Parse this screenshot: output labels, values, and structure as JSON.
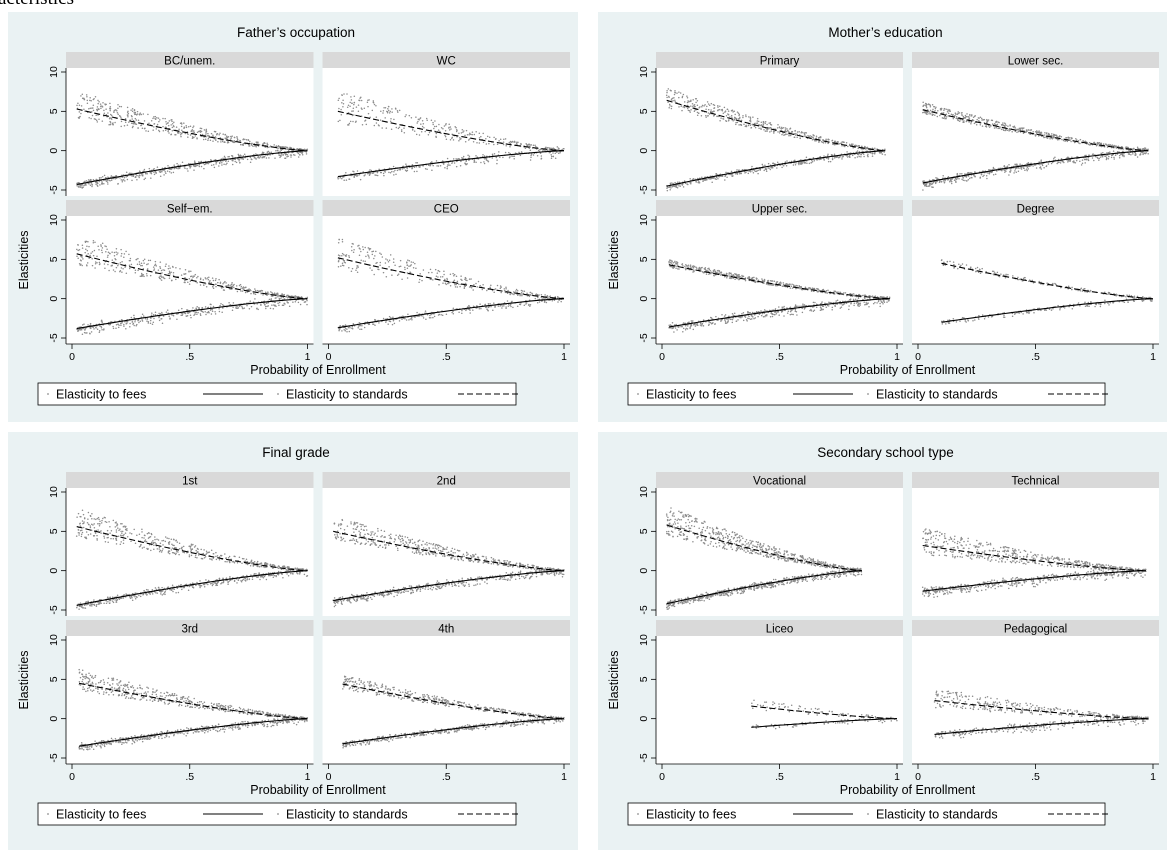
{
  "header_fragment": "acteristics",
  "colors": {
    "panel_bg": "#eaf2f3",
    "plot_bg": "#ffffff",
    "strip_bg": "#d9d9d9",
    "scatter": "#8c8c8c",
    "line": "#000000"
  },
  "chart_data": [
    {
      "type": "scatter",
      "title": "Father’s occupation",
      "xlabel": "Probability of Enrollment",
      "ylabel": "Elasticities",
      "xlim": [
        0,
        1
      ],
      "ylim": [
        -5,
        10
      ],
      "xticks": [
        "0",
        ".5",
        "1"
      ],
      "yticks": [
        "-5",
        "0",
        "5",
        "10"
      ],
      "legend": {
        "placement": "bottom",
        "entries": [
          {
            "label": "Elasticity to fees",
            "style": "solid"
          },
          {
            "label": "Elasticity to standards",
            "style": "dashed"
          }
        ]
      },
      "facets": [
        {
          "label": "BC/unem.",
          "xmin": 0.02,
          "xmax": 1.0,
          "fees_start": -4.3,
          "std_start": 5.3,
          "max_pos": 7.2,
          "max_neg": -5.0,
          "n": 520
        },
        {
          "label": "WC",
          "xmin": 0.04,
          "xmax": 1.0,
          "fees_start": -3.3,
          "std_start": 5.0,
          "max_pos": 7.3,
          "max_neg": -4.0,
          "n": 320
        },
        {
          "label": "Self−em.",
          "xmin": 0.02,
          "xmax": 1.0,
          "fees_start": -3.8,
          "std_start": 5.7,
          "max_pos": 7.7,
          "max_neg": -4.7,
          "n": 420
        },
        {
          "label": "CEO",
          "xmin": 0.04,
          "xmax": 1.0,
          "fees_start": -3.7,
          "std_start": 5.2,
          "max_pos": 7.3,
          "max_neg": -4.2,
          "n": 300
        }
      ]
    },
    {
      "type": "scatter",
      "title": "Mother’s education",
      "xlabel": "Probability of Enrollment",
      "ylabel": "Elasticities",
      "xlim": [
        0,
        1
      ],
      "ylim": [
        -5,
        10
      ],
      "xticks": [
        "0",
        ".5",
        "1"
      ],
      "yticks": [
        "-5",
        "0",
        "5",
        "10"
      ],
      "legend": {
        "placement": "bottom",
        "entries": [
          {
            "label": "Elasticity to fees",
            "style": "solid"
          },
          {
            "label": "Elasticity to standards",
            "style": "dashed"
          }
        ]
      },
      "facets": [
        {
          "label": "Primary",
          "xmin": 0.02,
          "xmax": 0.95,
          "fees_start": -4.5,
          "std_start": 6.4,
          "max_pos": 7.7,
          "max_neg": -5.0,
          "n": 480
        },
        {
          "label": "Lower sec.",
          "xmin": 0.02,
          "xmax": 0.98,
          "fees_start": -4.1,
          "std_start": 5.2,
          "max_pos": 5.9,
          "max_neg": -4.8,
          "n": 520
        },
        {
          "label": "Upper sec.",
          "xmin": 0.03,
          "xmax": 0.97,
          "fees_start": -3.6,
          "std_start": 4.3,
          "max_pos": 4.7,
          "max_neg": -4.3,
          "n": 500
        },
        {
          "label": "Degree",
          "xmin": 0.1,
          "xmax": 1.0,
          "fees_start": -3.0,
          "std_start": 4.5,
          "max_pos": 4.8,
          "max_neg": -3.3,
          "n": 180
        }
      ]
    },
    {
      "type": "scatter",
      "title": "Final grade",
      "xlabel": "Probability of Enrollment",
      "ylabel": "Elasticities",
      "xlim": [
        0,
        1
      ],
      "ylim": [
        -5,
        10
      ],
      "xticks": [
        "0",
        ".5",
        "1"
      ],
      "yticks": [
        "-5",
        "0",
        "5",
        "10"
      ],
      "legend": {
        "placement": "bottom",
        "entries": [
          {
            "label": "Elasticity to fees",
            "style": "solid"
          },
          {
            "label": "Elasticity to standards",
            "style": "dashed"
          }
        ]
      },
      "facets": [
        {
          "label": "1st",
          "xmin": 0.02,
          "xmax": 1.0,
          "fees_start": -4.4,
          "std_start": 5.6,
          "max_pos": 7.5,
          "max_neg": -4.9,
          "n": 480
        },
        {
          "label": "2nd",
          "xmin": 0.02,
          "xmax": 1.0,
          "fees_start": -3.8,
          "std_start": 5.0,
          "max_pos": 6.6,
          "max_neg": -4.4,
          "n": 500
        },
        {
          "label": "3rd",
          "xmin": 0.03,
          "xmax": 1.0,
          "fees_start": -3.5,
          "std_start": 4.5,
          "max_pos": 5.9,
          "max_neg": -4.0,
          "n": 520
        },
        {
          "label": "4th",
          "xmin": 0.06,
          "xmax": 1.0,
          "fees_start": -3.2,
          "std_start": 4.4,
          "max_pos": 5.3,
          "max_neg": -3.6,
          "n": 420
        }
      ]
    },
    {
      "type": "scatter",
      "title": "Secondary school type",
      "xlabel": "Probability of Enrollment",
      "ylabel": "Elasticities",
      "xlim": [
        0,
        1
      ],
      "ylim": [
        -5,
        10
      ],
      "xticks": [
        "0",
        ".5",
        "1"
      ],
      "yticks": [
        "-5",
        "0",
        "5",
        "10"
      ],
      "legend": {
        "placement": "bottom",
        "entries": [
          {
            "label": "Elasticity to fees",
            "style": "solid"
          },
          {
            "label": "Elasticity to standards",
            "style": "dashed"
          }
        ]
      },
      "facets": [
        {
          "label": "Vocational",
          "xmin": 0.02,
          "xmax": 0.85,
          "fees_start": -4.2,
          "std_start": 5.8,
          "max_pos": 7.8,
          "max_neg": -4.7,
          "n": 620
        },
        {
          "label": "Technical",
          "xmin": 0.02,
          "xmax": 0.97,
          "fees_start": -2.6,
          "std_start": 3.2,
          "max_pos": 5.0,
          "max_neg": -3.3,
          "n": 520
        },
        {
          "label": "Liceo",
          "xmin": 0.38,
          "xmax": 1.0,
          "fees_start": -1.1,
          "std_start": 1.6,
          "max_pos": 2.3,
          "max_neg": -1.4,
          "n": 80
        },
        {
          "label": "Pedagogical",
          "xmin": 0.07,
          "xmax": 0.98,
          "fees_start": -2.0,
          "std_start": 2.3,
          "max_pos": 3.6,
          "max_neg": -2.6,
          "n": 320
        }
      ]
    }
  ]
}
